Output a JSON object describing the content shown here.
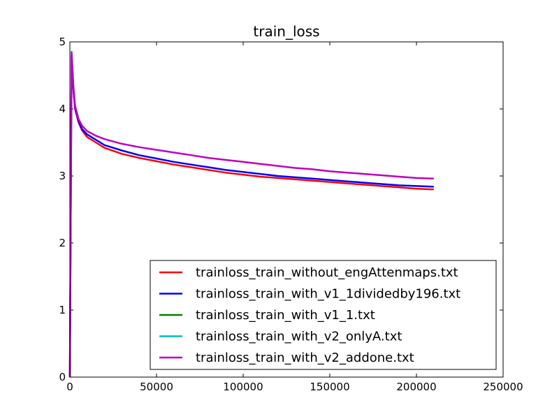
{
  "chart_data": {
    "type": "line",
    "title": "train_loss",
    "xlabel": "",
    "ylabel": "",
    "xlim": [
      0,
      250000
    ],
    "ylim": [
      0,
      5
    ],
    "x_ticks": [
      0,
      50000,
      100000,
      150000,
      200000,
      250000
    ],
    "x_tick_labels": [
      "0",
      "50000",
      "100000",
      "150000",
      "200000",
      "250000"
    ],
    "y_ticks": [
      0,
      1,
      2,
      3,
      4,
      5
    ],
    "y_tick_labels": [
      "0",
      "1",
      "2",
      "3",
      "4",
      "5"
    ],
    "grid": false,
    "legend_position": "lower-right",
    "series": [
      {
        "name": "trainloss_train_without_engAttenmaps.txt",
        "color": "#ff0000",
        "x": [
          0,
          1000,
          2000,
          3000,
          5000,
          7000,
          10000,
          15000,
          20000,
          30000,
          40000,
          50000,
          60000,
          70000,
          80000,
          90000,
          100000,
          110000,
          120000,
          130000,
          140000,
          150000,
          160000,
          170000,
          180000,
          190000,
          200000,
          210000
        ],
        "y": [
          0.0,
          4.8,
          4.3,
          4.0,
          3.8,
          3.68,
          3.58,
          3.5,
          3.42,
          3.33,
          3.27,
          3.22,
          3.17,
          3.13,
          3.09,
          3.05,
          3.02,
          2.99,
          2.97,
          2.95,
          2.93,
          2.91,
          2.89,
          2.87,
          2.85,
          2.83,
          2.81,
          2.8
        ]
      },
      {
        "name": "trainloss_train_with_v1_1dividedby196.txt",
        "color": "#0000ff",
        "x": [
          0,
          1000,
          2000,
          3000,
          5000,
          7000,
          10000,
          15000,
          20000,
          30000,
          40000,
          50000,
          60000,
          70000,
          80000,
          90000,
          100000,
          110000,
          120000,
          130000,
          140000,
          150000,
          160000,
          170000,
          180000,
          190000,
          200000,
          210000
        ],
        "y": [
          0.0,
          4.8,
          4.3,
          4.02,
          3.82,
          3.7,
          3.62,
          3.54,
          3.46,
          3.38,
          3.31,
          3.26,
          3.21,
          3.17,
          3.13,
          3.09,
          3.06,
          3.03,
          3.0,
          2.98,
          2.96,
          2.94,
          2.92,
          2.9,
          2.88,
          2.86,
          2.85,
          2.84
        ]
      },
      {
        "name": "trainloss_train_with_v1_1.txt",
        "color": "#008000",
        "x": [],
        "y": []
      },
      {
        "name": "trainloss_train_with_v2_onlyA.txt",
        "color": "#00bfbf",
        "x": [],
        "y": []
      },
      {
        "name": "trainloss_train_with_v2_addone.txt",
        "color": "#bf00bf",
        "x": [
          0,
          1000,
          2000,
          3000,
          5000,
          7000,
          10000,
          15000,
          20000,
          30000,
          40000,
          50000,
          60000,
          70000,
          80000,
          90000,
          100000,
          110000,
          120000,
          130000,
          140000,
          150000,
          160000,
          170000,
          180000,
          190000,
          200000,
          210000
        ],
        "y": [
          0.0,
          4.85,
          4.35,
          4.05,
          3.85,
          3.75,
          3.67,
          3.6,
          3.55,
          3.48,
          3.43,
          3.39,
          3.35,
          3.31,
          3.27,
          3.24,
          3.21,
          3.18,
          3.15,
          3.12,
          3.1,
          3.07,
          3.05,
          3.03,
          3.01,
          2.99,
          2.97,
          2.96
        ]
      }
    ]
  }
}
